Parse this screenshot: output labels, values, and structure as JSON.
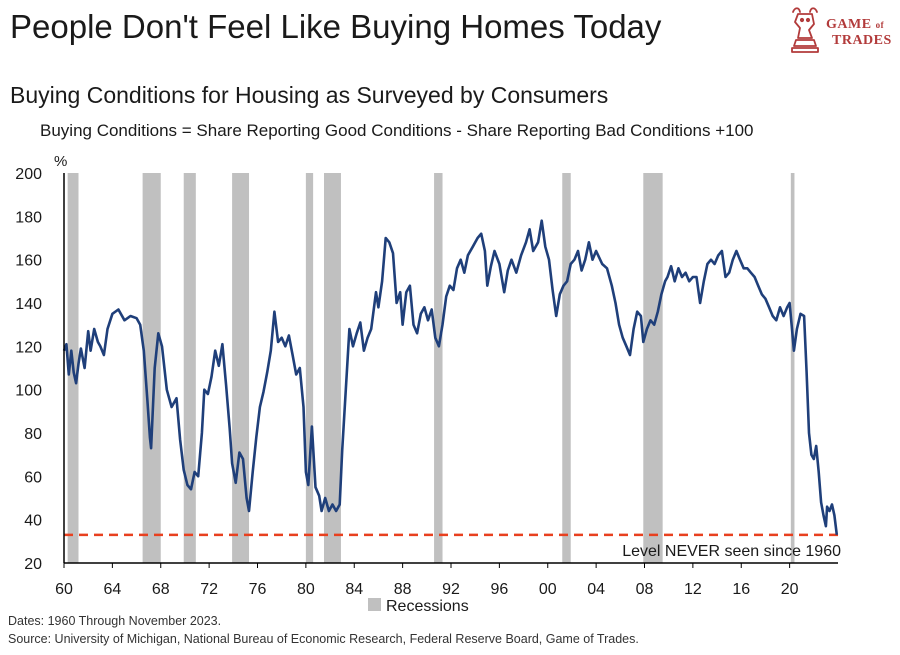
{
  "title": "People Don't Feel Like Buying Homes Today",
  "subtitle": "Buying Conditions for Housing as Surveyed by Consumers",
  "formula": "Buying Conditions = Share Reporting Good Conditions - Share Reporting Bad Conditions +100",
  "logo": {
    "line1": "GAME",
    "line2": "of",
    "line3": "TRADES",
    "icon": "bull-chess-knight-icon"
  },
  "footnotes": {
    "dates": "Dates: 1960 Through November 2023.",
    "source": "Source: University of Michigan, National Bureau of Economic Research, Federal Reserve Board, Game of Trades."
  },
  "colors": {
    "line": "#1f3f7a",
    "recession": "#c0c0c0",
    "threshold": "#e8401f",
    "brand": "#b23b3b"
  },
  "chart_data": {
    "type": "line",
    "ylabel": "%",
    "ylim": [
      20,
      200
    ],
    "yticks": [
      20,
      40,
      60,
      80,
      100,
      120,
      140,
      160,
      180,
      200
    ],
    "xlim": [
      1960,
      2024
    ],
    "xticks": [
      {
        "value": 1960,
        "label": "60"
      },
      {
        "value": 1964,
        "label": "64"
      },
      {
        "value": 1968,
        "label": "68"
      },
      {
        "value": 1972,
        "label": "72"
      },
      {
        "value": 1976,
        "label": "76"
      },
      {
        "value": 1980,
        "label": "80"
      },
      {
        "value": 1984,
        "label": "84"
      },
      {
        "value": 1988,
        "label": "88"
      },
      {
        "value": 1992,
        "label": "92"
      },
      {
        "value": 1996,
        "label": "96"
      },
      {
        "value": 2000,
        "label": "00"
      },
      {
        "value": 2004,
        "label": "04"
      },
      {
        "value": 2008,
        "label": "08"
      },
      {
        "value": 2012,
        "label": "12"
      },
      {
        "value": 2016,
        "label": "16"
      },
      {
        "value": 2020,
        "label": "20"
      }
    ],
    "grid": false,
    "legend": {
      "label": "Recessions",
      "placement": "bottom-center"
    },
    "recessions": [
      [
        1960.3,
        1961.2
      ],
      [
        1966.5,
        1968.0
      ],
      [
        1969.9,
        1970.9
      ],
      [
        1973.9,
        1975.3
      ],
      [
        1980.0,
        1980.6
      ],
      [
        1981.5,
        1982.9
      ],
      [
        1990.6,
        1991.3
      ],
      [
        2001.2,
        2001.9
      ],
      [
        2007.9,
        2009.5
      ],
      [
        2020.1,
        2020.4
      ]
    ],
    "threshold": {
      "value": 33,
      "label": "Level NEVER seen since 1960"
    },
    "series": [
      {
        "points": [
          [
            1960.0,
            118
          ],
          [
            1960.2,
            121
          ],
          [
            1960.4,
            107
          ],
          [
            1960.6,
            118
          ],
          [
            1960.8,
            108
          ],
          [
            1961.0,
            103
          ],
          [
            1961.2,
            112
          ],
          [
            1961.4,
            119
          ],
          [
            1961.7,
            110
          ],
          [
            1962.0,
            127
          ],
          [
            1962.2,
            118
          ],
          [
            1962.5,
            128
          ],
          [
            1962.8,
            122
          ],
          [
            1963.0,
            120
          ],
          [
            1963.3,
            116
          ],
          [
            1963.6,
            128
          ],
          [
            1964.0,
            135
          ],
          [
            1964.5,
            137
          ],
          [
            1965.0,
            132
          ],
          [
            1965.5,
            134
          ],
          [
            1966.0,
            133
          ],
          [
            1966.3,
            130
          ],
          [
            1966.6,
            118
          ],
          [
            1966.9,
            95
          ],
          [
            1967.1,
            78
          ],
          [
            1967.2,
            73
          ],
          [
            1967.5,
            110
          ],
          [
            1967.8,
            126
          ],
          [
            1968.1,
            120
          ],
          [
            1968.5,
            100
          ],
          [
            1968.9,
            92
          ],
          [
            1969.3,
            96
          ],
          [
            1969.6,
            77
          ],
          [
            1969.9,
            63
          ],
          [
            1970.2,
            56
          ],
          [
            1970.5,
            54
          ],
          [
            1970.8,
            62
          ],
          [
            1971.1,
            60
          ],
          [
            1971.4,
            80
          ],
          [
            1971.6,
            100
          ],
          [
            1971.9,
            98
          ],
          [
            1972.2,
            106
          ],
          [
            1972.5,
            118
          ],
          [
            1972.8,
            111
          ],
          [
            1973.1,
            121
          ],
          [
            1973.4,
            102
          ],
          [
            1973.7,
            82
          ],
          [
            1973.9,
            66
          ],
          [
            1974.2,
            57
          ],
          [
            1974.5,
            71
          ],
          [
            1974.8,
            68
          ],
          [
            1975.1,
            50
          ],
          [
            1975.3,
            44
          ],
          [
            1975.6,
            62
          ],
          [
            1975.9,
            78
          ],
          [
            1976.2,
            92
          ],
          [
            1976.5,
            99
          ],
          [
            1976.8,
            108
          ],
          [
            1977.1,
            118
          ],
          [
            1977.4,
            136
          ],
          [
            1977.7,
            122
          ],
          [
            1978.0,
            124
          ],
          [
            1978.3,
            120
          ],
          [
            1978.6,
            125
          ],
          [
            1978.9,
            116
          ],
          [
            1979.2,
            107
          ],
          [
            1979.5,
            110
          ],
          [
            1979.8,
            92
          ],
          [
            1980.0,
            62
          ],
          [
            1980.2,
            56
          ],
          [
            1980.5,
            83
          ],
          [
            1980.8,
            55
          ],
          [
            1981.1,
            51
          ],
          [
            1981.3,
            44
          ],
          [
            1981.6,
            50
          ],
          [
            1981.9,
            44
          ],
          [
            1982.2,
            47
          ],
          [
            1982.5,
            44
          ],
          [
            1982.8,
            47
          ],
          [
            1983.0,
            72
          ],
          [
            1983.3,
            100
          ],
          [
            1983.6,
            128
          ],
          [
            1983.9,
            120
          ],
          [
            1984.2,
            126
          ],
          [
            1984.5,
            131
          ],
          [
            1984.8,
            118
          ],
          [
            1985.1,
            124
          ],
          [
            1985.4,
            128
          ],
          [
            1985.8,
            145
          ],
          [
            1986.0,
            138
          ],
          [
            1986.3,
            150
          ],
          [
            1986.6,
            170
          ],
          [
            1986.9,
            168
          ],
          [
            1987.2,
            163
          ],
          [
            1987.5,
            140
          ],
          [
            1987.8,
            145
          ],
          [
            1988.0,
            130
          ],
          [
            1988.3,
            145
          ],
          [
            1988.6,
            148
          ],
          [
            1988.9,
            130
          ],
          [
            1989.2,
            126
          ],
          [
            1989.5,
            135
          ],
          [
            1989.8,
            138
          ],
          [
            1990.1,
            132
          ],
          [
            1990.4,
            137
          ],
          [
            1990.7,
            124
          ],
          [
            1991.0,
            120
          ],
          [
            1991.3,
            130
          ],
          [
            1991.6,
            143
          ],
          [
            1991.9,
            148
          ],
          [
            1992.2,
            146
          ],
          [
            1992.5,
            156
          ],
          [
            1992.8,
            160
          ],
          [
            1993.1,
            154
          ],
          [
            1993.4,
            162
          ],
          [
            1993.8,
            166
          ],
          [
            1994.2,
            170
          ],
          [
            1994.5,
            172
          ],
          [
            1994.8,
            164
          ],
          [
            1995.0,
            148
          ],
          [
            1995.3,
            157
          ],
          [
            1995.6,
            164
          ],
          [
            1996.0,
            158
          ],
          [
            1996.4,
            145
          ],
          [
            1996.7,
            155
          ],
          [
            1997.0,
            160
          ],
          [
            1997.4,
            154
          ],
          [
            1997.8,
            162
          ],
          [
            1998.2,
            168
          ],
          [
            1998.5,
            174
          ],
          [
            1998.8,
            164
          ],
          [
            1999.2,
            168
          ],
          [
            1999.5,
            178
          ],
          [
            1999.8,
            166
          ],
          [
            2000.1,
            160
          ],
          [
            2000.4,
            146
          ],
          [
            2000.7,
            134
          ],
          [
            2001.0,
            144
          ],
          [
            2001.3,
            148
          ],
          [
            2001.6,
            150
          ],
          [
            2001.9,
            158
          ],
          [
            2002.2,
            160
          ],
          [
            2002.5,
            164
          ],
          [
            2002.8,
            155
          ],
          [
            2003.1,
            160
          ],
          [
            2003.4,
            168
          ],
          [
            2003.7,
            160
          ],
          [
            2004.0,
            164
          ],
          [
            2004.5,
            158
          ],
          [
            2004.9,
            156
          ],
          [
            2005.3,
            148
          ],
          [
            2005.6,
            140
          ],
          [
            2005.9,
            130
          ],
          [
            2006.2,
            124
          ],
          [
            2006.5,
            120
          ],
          [
            2006.8,
            116
          ],
          [
            2007.1,
            128
          ],
          [
            2007.4,
            136
          ],
          [
            2007.7,
            134
          ],
          [
            2007.9,
            122
          ],
          [
            2008.2,
            128
          ],
          [
            2008.5,
            132
          ],
          [
            2008.8,
            130
          ],
          [
            2009.1,
            136
          ],
          [
            2009.4,
            144
          ],
          [
            2009.7,
            150
          ],
          [
            2009.9,
            152
          ],
          [
            2010.2,
            157
          ],
          [
            2010.5,
            150
          ],
          [
            2010.8,
            156
          ],
          [
            2011.1,
            152
          ],
          [
            2011.4,
            154
          ],
          [
            2011.7,
            150
          ],
          [
            2012.0,
            152
          ],
          [
            2012.3,
            152
          ],
          [
            2012.6,
            140
          ],
          [
            2012.9,
            150
          ],
          [
            2013.2,
            158
          ],
          [
            2013.5,
            160
          ],
          [
            2013.8,
            158
          ],
          [
            2014.1,
            162
          ],
          [
            2014.4,
            164
          ],
          [
            2014.7,
            152
          ],
          [
            2015.0,
            154
          ],
          [
            2015.3,
            160
          ],
          [
            2015.6,
            164
          ],
          [
            2015.9,
            160
          ],
          [
            2016.2,
            156
          ],
          [
            2016.5,
            156
          ],
          [
            2016.8,
            154
          ],
          [
            2017.1,
            152
          ],
          [
            2017.4,
            148
          ],
          [
            2017.7,
            144
          ],
          [
            2018.0,
            142
          ],
          [
            2018.3,
            138
          ],
          [
            2018.6,
            134
          ],
          [
            2018.9,
            132
          ],
          [
            2019.2,
            138
          ],
          [
            2019.5,
            134
          ],
          [
            2019.8,
            138
          ],
          [
            2020.0,
            140
          ],
          [
            2020.2,
            128
          ],
          [
            2020.35,
            118
          ],
          [
            2020.6,
            128
          ],
          [
            2020.9,
            135
          ],
          [
            2021.2,
            134
          ],
          [
            2021.4,
            108
          ],
          [
            2021.6,
            80
          ],
          [
            2021.8,
            70
          ],
          [
            2022.0,
            68
          ],
          [
            2022.2,
            74
          ],
          [
            2022.4,
            62
          ],
          [
            2022.6,
            48
          ],
          [
            2022.8,
            42
          ],
          [
            2023.0,
            37
          ],
          [
            2023.1,
            46
          ],
          [
            2023.3,
            44
          ],
          [
            2023.5,
            47
          ],
          [
            2023.7,
            42
          ],
          [
            2023.9,
            33
          ]
        ]
      }
    ]
  }
}
